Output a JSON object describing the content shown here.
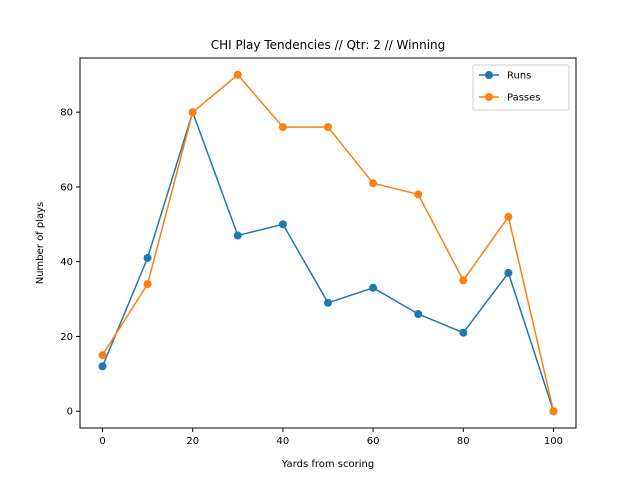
{
  "chart_data": {
    "type": "line",
    "title": "CHI Play Tendencies // Qtr: 2 // Winning",
    "xlabel": "Yards from scoring",
    "ylabel": "Number of plays",
    "x": [
      0,
      10,
      20,
      30,
      40,
      50,
      60,
      70,
      80,
      90,
      100
    ],
    "series": [
      {
        "name": "Runs",
        "color": "#1f77b4",
        "values": [
          12,
          41,
          80,
          47,
          50,
          29,
          33,
          26,
          21,
          37,
          0
        ]
      },
      {
        "name": "Passes",
        "color": "#ff7f0e",
        "values": [
          15,
          34,
          80,
          90,
          76,
          76,
          61,
          58,
          35,
          52,
          0
        ]
      }
    ],
    "xlim": [
      -5,
      105
    ],
    "ylim": [
      -4.5,
      94.5
    ],
    "xticks": [
      0,
      20,
      40,
      60,
      80,
      100
    ],
    "yticks": [
      0,
      20,
      40,
      60,
      80
    ],
    "grid": false,
    "legend_position": "top-right"
  }
}
